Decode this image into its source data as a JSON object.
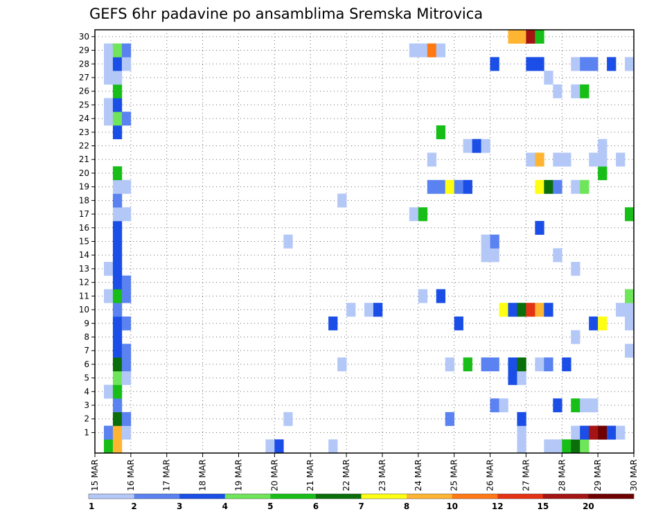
{
  "chart_data": {
    "type": "heatmap",
    "title": "GEFS 6hr padavine po ansamblima Sremska Mitrovica",
    "y_ticks": [
      "1",
      "2",
      "3",
      "4",
      "5",
      "6",
      "7",
      "8",
      "9",
      "10",
      "11",
      "12",
      "13",
      "14",
      "15",
      "16",
      "17",
      "18",
      "19",
      "20",
      "21",
      "22",
      "23",
      "24",
      "25",
      "26",
      "27",
      "28",
      "29",
      "30"
    ],
    "x_ticks": [
      "15 MAR",
      "16 MAR",
      "17 MAR",
      "18 MAR",
      "19 MAR",
      "20 MAR",
      "21 MAR",
      "22 MAR",
      "23 MAR",
      "24 MAR",
      "25 MAR",
      "26 MAR",
      "27 MAR",
      "28 MAR",
      "29 MAR",
      "30 MAR"
    ],
    "x_range": [
      "15 MAR 00Z",
      "30 MAR 00Z"
    ],
    "time_step_hours": 6,
    "grid": "dotted",
    "legend_position": "bottom",
    "legend": {
      "labels": [
        "1",
        "2",
        "3",
        "4",
        "5",
        "6",
        "7",
        "8",
        "10",
        "12",
        "15",
        "20"
      ],
      "colors": [
        "#b4c8f8",
        "#5a82f0",
        "#1a4ee6",
        "#6fe55a",
        "#18be18",
        "#0a6e0a",
        "#ffff14",
        "#ffb432",
        "#ff7814",
        "#e63214",
        "#a51414",
        "#6e0000"
      ]
    },
    "cells": [
      {
        "member": 0,
        "step": 1,
        "cat": 4
      },
      {
        "member": 0,
        "step": 2,
        "cat": 7
      },
      {
        "member": 0,
        "step": 19,
        "cat": 0
      },
      {
        "member": 0,
        "step": 20,
        "cat": 2
      },
      {
        "member": 0,
        "step": 26,
        "cat": 0
      },
      {
        "member": 0,
        "step": 47,
        "cat": 0
      },
      {
        "member": 0,
        "step": 50,
        "cat": 0
      },
      {
        "member": 0,
        "step": 51,
        "cat": 0
      },
      {
        "member": 0,
        "step": 52,
        "cat": 4
      },
      {
        "member": 0,
        "step": 53,
        "cat": 5
      },
      {
        "member": 0,
        "step": 54,
        "cat": 3
      },
      {
        "member": 1,
        "step": 1,
        "cat": 1
      },
      {
        "member": 1,
        "step": 2,
        "cat": 7
      },
      {
        "member": 1,
        "step": 3,
        "cat": 0
      },
      {
        "member": 1,
        "step": 47,
        "cat": 0
      },
      {
        "member": 1,
        "step": 53,
        "cat": 0
      },
      {
        "member": 1,
        "step": 54,
        "cat": 2
      },
      {
        "member": 1,
        "step": 55,
        "cat": 10
      },
      {
        "member": 1,
        "step": 56,
        "cat": 11
      },
      {
        "member": 1,
        "step": 57,
        "cat": 2
      },
      {
        "member": 1,
        "step": 58,
        "cat": 0
      },
      {
        "member": 2,
        "step": 2,
        "cat": 5
      },
      {
        "member": 2,
        "step": 3,
        "cat": 1
      },
      {
        "member": 2,
        "step": 21,
        "cat": 0
      },
      {
        "member": 2,
        "step": 39,
        "cat": 1
      },
      {
        "member": 2,
        "step": 47,
        "cat": 2
      },
      {
        "member": 3,
        "step": 2,
        "cat": 1
      },
      {
        "member": 3,
        "step": 44,
        "cat": 1
      },
      {
        "member": 3,
        "step": 45,
        "cat": 0
      },
      {
        "member": 3,
        "step": 51,
        "cat": 2
      },
      {
        "member": 3,
        "step": 53,
        "cat": 4
      },
      {
        "member": 3,
        "step": 54,
        "cat": 0
      },
      {
        "member": 3,
        "step": 55,
        "cat": 0
      },
      {
        "member": 4,
        "step": 1,
        "cat": 0
      },
      {
        "member": 4,
        "step": 2,
        "cat": 4
      },
      {
        "member": 5,
        "step": 2,
        "cat": 3
      },
      {
        "member": 5,
        "step": 3,
        "cat": 0
      },
      {
        "member": 5,
        "step": 46,
        "cat": 2
      },
      {
        "member": 5,
        "step": 47,
        "cat": 0
      },
      {
        "member": 6,
        "step": 2,
        "cat": 5
      },
      {
        "member": 6,
        "step": 3,
        "cat": 1
      },
      {
        "member": 6,
        "step": 27,
        "cat": 0
      },
      {
        "member": 6,
        "step": 39,
        "cat": 0
      },
      {
        "member": 6,
        "step": 41,
        "cat": 4
      },
      {
        "member": 6,
        "step": 43,
        "cat": 1
      },
      {
        "member": 6,
        "step": 44,
        "cat": 1
      },
      {
        "member": 6,
        "step": 46,
        "cat": 2
      },
      {
        "member": 6,
        "step": 47,
        "cat": 5
      },
      {
        "member": 6,
        "step": 49,
        "cat": 0
      },
      {
        "member": 6,
        "step": 50,
        "cat": 1
      },
      {
        "member": 6,
        "step": 52,
        "cat": 2
      },
      {
        "member": 7,
        "step": 2,
        "cat": 2
      },
      {
        "member": 7,
        "step": 3,
        "cat": 1
      },
      {
        "member": 7,
        "step": 59,
        "cat": 0
      },
      {
        "member": 8,
        "step": 2,
        "cat": 2
      },
      {
        "member": 8,
        "step": 53,
        "cat": 0
      },
      {
        "member": 9,
        "step": 2,
        "cat": 2
      },
      {
        "member": 9,
        "step": 3,
        "cat": 1
      },
      {
        "member": 9,
        "step": 26,
        "cat": 2
      },
      {
        "member": 9,
        "step": 40,
        "cat": 2
      },
      {
        "member": 9,
        "step": 55,
        "cat": 2
      },
      {
        "member": 9,
        "step": 56,
        "cat": 6
      },
      {
        "member": 9,
        "step": 59,
        "cat": 0
      },
      {
        "member": 10,
        "step": 2,
        "cat": 1
      },
      {
        "member": 10,
        "step": 28,
        "cat": 0
      },
      {
        "member": 10,
        "step": 30,
        "cat": 0
      },
      {
        "member": 10,
        "step": 31,
        "cat": 2
      },
      {
        "member": 10,
        "step": 45,
        "cat": 6
      },
      {
        "member": 10,
        "step": 46,
        "cat": 2
      },
      {
        "member": 10,
        "step": 47,
        "cat": 5
      },
      {
        "member": 10,
        "step": 48,
        "cat": 9
      },
      {
        "member": 10,
        "step": 49,
        "cat": 7
      },
      {
        "member": 10,
        "step": 50,
        "cat": 2
      },
      {
        "member": 10,
        "step": 58,
        "cat": 0
      },
      {
        "member": 10,
        "step": 59,
        "cat": 0
      },
      {
        "member": 11,
        "step": 1,
        "cat": 0
      },
      {
        "member": 11,
        "step": 2,
        "cat": 4
      },
      {
        "member": 11,
        "step": 3,
        "cat": 1
      },
      {
        "member": 11,
        "step": 36,
        "cat": 0
      },
      {
        "member": 11,
        "step": 38,
        "cat": 2
      },
      {
        "member": 11,
        "step": 59,
        "cat": 3
      },
      {
        "member": 12,
        "step": 2,
        "cat": 2
      },
      {
        "member": 12,
        "step": 3,
        "cat": 1
      },
      {
        "member": 13,
        "step": 1,
        "cat": 0
      },
      {
        "member": 13,
        "step": 2,
        "cat": 2
      },
      {
        "member": 13,
        "step": 53,
        "cat": 0
      },
      {
        "member": 14,
        "step": 2,
        "cat": 2
      },
      {
        "member": 14,
        "step": 43,
        "cat": 0
      },
      {
        "member": 14,
        "step": 44,
        "cat": 0
      },
      {
        "member": 14,
        "step": 51,
        "cat": 0
      },
      {
        "member": 15,
        "step": 2,
        "cat": 2
      },
      {
        "member": 15,
        "step": 21,
        "cat": 0
      },
      {
        "member": 15,
        "step": 43,
        "cat": 0
      },
      {
        "member": 15,
        "step": 44,
        "cat": 1
      },
      {
        "member": 16,
        "step": 2,
        "cat": 2
      },
      {
        "member": 16,
        "step": 49,
        "cat": 2
      },
      {
        "member": 17,
        "step": 2,
        "cat": 0
      },
      {
        "member": 17,
        "step": 3,
        "cat": 0
      },
      {
        "member": 17,
        "step": 35,
        "cat": 0
      },
      {
        "member": 17,
        "step": 36,
        "cat": 4
      },
      {
        "member": 17,
        "step": 59,
        "cat": 4
      },
      {
        "member": 18,
        "step": 2,
        "cat": 1
      },
      {
        "member": 18,
        "step": 27,
        "cat": 0
      },
      {
        "member": 19,
        "step": 2,
        "cat": 0
      },
      {
        "member": 19,
        "step": 3,
        "cat": 0
      },
      {
        "member": 19,
        "step": 37,
        "cat": 1
      },
      {
        "member": 19,
        "step": 38,
        "cat": 1
      },
      {
        "member": 19,
        "step": 39,
        "cat": 6
      },
      {
        "member": 19,
        "step": 40,
        "cat": 1
      },
      {
        "member": 19,
        "step": 41,
        "cat": 2
      },
      {
        "member": 19,
        "step": 49,
        "cat": 6
      },
      {
        "member": 19,
        "step": 50,
        "cat": 5
      },
      {
        "member": 19,
        "step": 51,
        "cat": 1
      },
      {
        "member": 19,
        "step": 53,
        "cat": 0
      },
      {
        "member": 19,
        "step": 54,
        "cat": 3
      },
      {
        "member": 20,
        "step": 2,
        "cat": 4
      },
      {
        "member": 20,
        "step": 56,
        "cat": 4
      },
      {
        "member": 21,
        "step": 37,
        "cat": 0
      },
      {
        "member": 21,
        "step": 48,
        "cat": 0
      },
      {
        "member": 21,
        "step": 49,
        "cat": 7
      },
      {
        "member": 21,
        "step": 51,
        "cat": 0
      },
      {
        "member": 21,
        "step": 52,
        "cat": 0
      },
      {
        "member": 21,
        "step": 55,
        "cat": 0
      },
      {
        "member": 21,
        "step": 56,
        "cat": 0
      },
      {
        "member": 21,
        "step": 58,
        "cat": 0
      },
      {
        "member": 22,
        "step": 41,
        "cat": 0
      },
      {
        "member": 22,
        "step": 42,
        "cat": 2
      },
      {
        "member": 22,
        "step": 43,
        "cat": 0
      },
      {
        "member": 22,
        "step": 56,
        "cat": 0
      },
      {
        "member": 23,
        "step": 2,
        "cat": 2
      },
      {
        "member": 23,
        "step": 38,
        "cat": 4
      },
      {
        "member": 24,
        "step": 1,
        "cat": 0
      },
      {
        "member": 24,
        "step": 2,
        "cat": 3
      },
      {
        "member": 24,
        "step": 3,
        "cat": 1
      },
      {
        "member": 25,
        "step": 1,
        "cat": 0
      },
      {
        "member": 25,
        "step": 2,
        "cat": 2
      },
      {
        "member": 26,
        "step": 2,
        "cat": 4
      },
      {
        "member": 26,
        "step": 51,
        "cat": 0
      },
      {
        "member": 26,
        "step": 53,
        "cat": 0
      },
      {
        "member": 26,
        "step": 54,
        "cat": 4
      },
      {
        "member": 27,
        "step": 1,
        "cat": 0
      },
      {
        "member": 27,
        "step": 2,
        "cat": 0
      },
      {
        "member": 27,
        "step": 50,
        "cat": 0
      },
      {
        "member": 28,
        "step": 1,
        "cat": 0
      },
      {
        "member": 28,
        "step": 2,
        "cat": 2
      },
      {
        "member": 28,
        "step": 3,
        "cat": 0
      },
      {
        "member": 28,
        "step": 44,
        "cat": 2
      },
      {
        "member": 28,
        "step": 48,
        "cat": 2
      },
      {
        "member": 28,
        "step": 49,
        "cat": 2
      },
      {
        "member": 28,
        "step": 53,
        "cat": 0
      },
      {
        "member": 28,
        "step": 54,
        "cat": 1
      },
      {
        "member": 28,
        "step": 55,
        "cat": 1
      },
      {
        "member": 28,
        "step": 57,
        "cat": 2
      },
      {
        "member": 28,
        "step": 59,
        "cat": 0
      },
      {
        "member": 29,
        "step": 1,
        "cat": 0
      },
      {
        "member": 29,
        "step": 2,
        "cat": 3
      },
      {
        "member": 29,
        "step": 3,
        "cat": 1
      },
      {
        "member": 29,
        "step": 35,
        "cat": 0
      },
      {
        "member": 29,
        "step": 36,
        "cat": 0
      },
      {
        "member": 29,
        "step": 37,
        "cat": 8
      },
      {
        "member": 29,
        "step": 38,
        "cat": 0
      },
      {
        "member": 30,
        "step": 46,
        "cat": 7
      },
      {
        "member": 30,
        "step": 47,
        "cat": 7
      },
      {
        "member": 30,
        "step": 48,
        "cat": 10
      },
      {
        "member": 30,
        "step": 49,
        "cat": 4
      }
    ]
  }
}
